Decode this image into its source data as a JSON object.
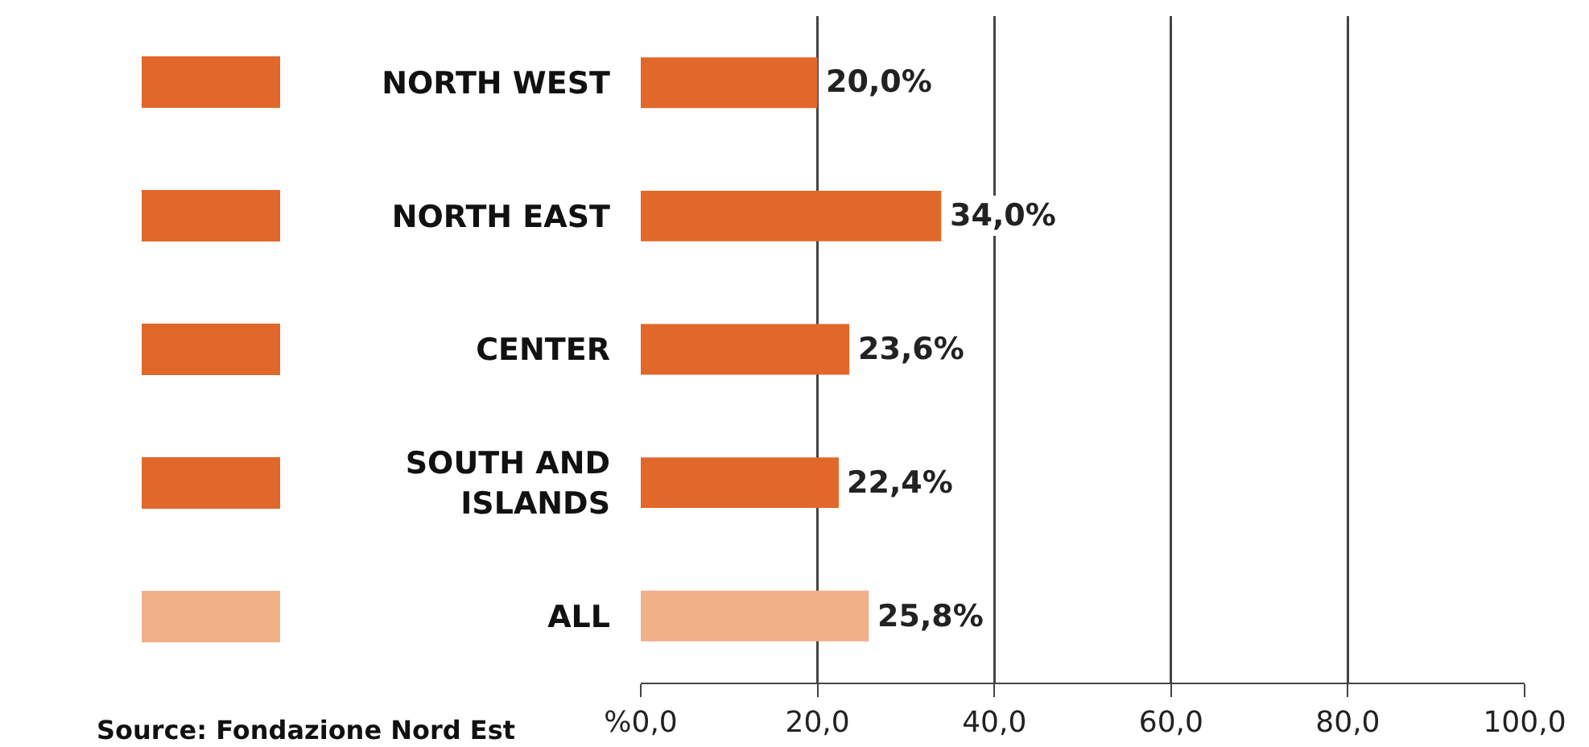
{
  "chart_data": {
    "type": "bar",
    "orientation": "horizontal",
    "categories": [
      "NORTH WEST",
      "NORTH EAST",
      "CENTER",
      "SOUTH AND ISLANDS",
      "ALL"
    ],
    "values": [
      20.0,
      34.0,
      23.6,
      22.4,
      25.8
    ],
    "colors": [
      "#e2672a",
      "#e2672a",
      "#e2672a",
      "#e2672a",
      "#f2b089"
    ],
    "value_labels": [
      "20,0%",
      "34,0%",
      "23,6%",
      "22,4%",
      "25,8%"
    ],
    "xlim": [
      0,
      100
    ],
    "xticks": [
      {
        "value": 0,
        "label": "%0,0"
      },
      {
        "value": 20,
        "label": "20,0"
      },
      {
        "value": 40,
        "label": "40,0"
      },
      {
        "value": 60,
        "label": "60,0"
      },
      {
        "value": 80,
        "label": "80,0"
      },
      {
        "value": 100,
        "label": "100,0"
      }
    ],
    "grid": "x",
    "annotations": [
      "Source: Fondazione Nord Est"
    ]
  }
}
